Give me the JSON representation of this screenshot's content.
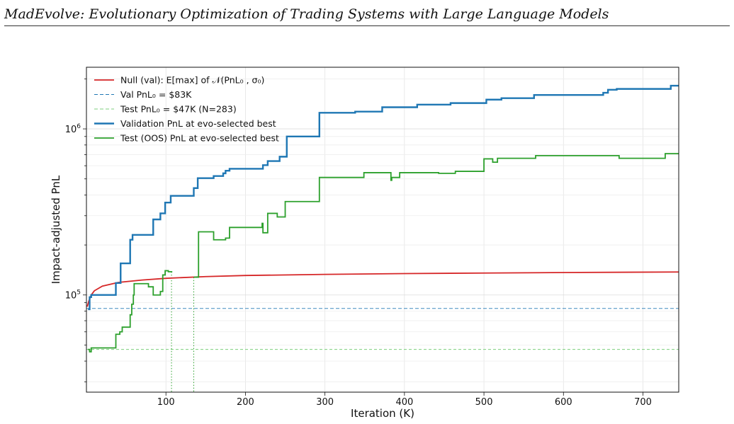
{
  "page_header": "MadEvolve: Evolutionary Optimization of Trading Systems with Large Language Models",
  "chart_data": {
    "type": "line",
    "xlabel": "Iteration (K)",
    "ylabel": "Impact-adjusted PnL",
    "xlim": [
      0,
      745
    ],
    "ylim": [
      26000,
      2350000
    ],
    "yscale": "log",
    "xticks": [
      100,
      200,
      300,
      400,
      500,
      600,
      700
    ],
    "yticks": [
      {
        "value": 100000,
        "base": "10",
        "exp": "5"
      },
      {
        "value": 1000000,
        "base": "10",
        "exp": "6"
      }
    ],
    "grid": true,
    "legend_position": "top-left",
    "colors": {
      "null": "#d62728",
      "val": "#1f77b4",
      "test": "#2ca02c"
    },
    "legend": [
      {
        "key": "null",
        "label": "Null (val): E[max] of 𝒩(PnL₀ , σ₀)",
        "color": "#d62728",
        "style": "solid"
      },
      {
        "key": "val_base",
        "label": "Val PnL₀ = $83K",
        "color": "#1f77b4",
        "style": "dashed"
      },
      {
        "key": "test_base",
        "label": "Test PnL₀ = $47K  (N=283)",
        "color": "#2ca02c",
        "style": "dashed"
      },
      {
        "key": "val",
        "label": "Validation PnL at evo-selected best",
        "color": "#1f77b4",
        "style": "solid"
      },
      {
        "key": "test",
        "label": "Test (OOS) PnL at evo-selected best",
        "color": "#2ca02c",
        "style": "solid"
      }
    ],
    "baselines": {
      "val": 83000,
      "test": 47000
    },
    "vlines": [
      {
        "x": 107,
        "y_top": 138000
      },
      {
        "x": 135,
        "y_top": 128000
      }
    ],
    "series": [
      {
        "key": "null",
        "points": [
          [
            1,
            85000
          ],
          [
            3,
            92000
          ],
          [
            6,
            100000
          ],
          [
            10,
            106000
          ],
          [
            20,
            113000
          ],
          [
            40,
            119000
          ],
          [
            70,
            123000
          ],
          [
            100,
            126000
          ],
          [
            150,
            129000
          ],
          [
            200,
            131000
          ],
          [
            300,
            133000
          ],
          [
            400,
            134500
          ],
          [
            500,
            135500
          ],
          [
            600,
            136500
          ],
          [
            745,
            137500
          ]
        ]
      },
      {
        "key": "val",
        "points": [
          [
            2,
            82000
          ],
          [
            4,
            82000
          ],
          [
            4,
            97000
          ],
          [
            6,
            97000
          ],
          [
            6,
            100000
          ],
          [
            37,
            100000
          ],
          [
            37,
            118000
          ],
          [
            43,
            118000
          ],
          [
            43,
            155000
          ],
          [
            55,
            155000
          ],
          [
            55,
            215000
          ],
          [
            58,
            215000
          ],
          [
            58,
            230000
          ],
          [
            84,
            230000
          ],
          [
            84,
            285000
          ],
          [
            93,
            285000
          ],
          [
            93,
            310000
          ],
          [
            99,
            310000
          ],
          [
            99,
            360000
          ],
          [
            106,
            360000
          ],
          [
            106,
            395000
          ],
          [
            135,
            395000
          ],
          [
            135,
            440000
          ],
          [
            140,
            440000
          ],
          [
            140,
            505000
          ],
          [
            160,
            505000
          ],
          [
            160,
            520000
          ],
          [
            172,
            520000
          ],
          [
            172,
            540000
          ],
          [
            175,
            540000
          ],
          [
            175,
            560000
          ],
          [
            180,
            560000
          ],
          [
            180,
            575000
          ],
          [
            222,
            575000
          ],
          [
            222,
            605000
          ],
          [
            228,
            605000
          ],
          [
            228,
            640000
          ],
          [
            243,
            640000
          ],
          [
            243,
            680000
          ],
          [
            252,
            680000
          ],
          [
            252,
            900000
          ],
          [
            293,
            900000
          ],
          [
            293,
            1250000
          ],
          [
            338,
            1250000
          ],
          [
            338,
            1270000
          ],
          [
            372,
            1270000
          ],
          [
            372,
            1350000
          ],
          [
            416,
            1350000
          ],
          [
            416,
            1400000
          ],
          [
            458,
            1400000
          ],
          [
            458,
            1430000
          ],
          [
            503,
            1430000
          ],
          [
            503,
            1500000
          ],
          [
            522,
            1500000
          ],
          [
            522,
            1530000
          ],
          [
            563,
            1530000
          ],
          [
            563,
            1600000
          ],
          [
            650,
            1600000
          ],
          [
            650,
            1650000
          ],
          [
            656,
            1650000
          ],
          [
            656,
            1720000
          ],
          [
            667,
            1720000
          ],
          [
            667,
            1740000
          ],
          [
            735,
            1740000
          ],
          [
            735,
            1820000
          ],
          [
            745,
            1820000
          ]
        ]
      },
      {
        "key": "test_a",
        "points": [
          [
            2,
            47000
          ],
          [
            4,
            47000
          ],
          [
            4,
            45500
          ],
          [
            6,
            45500
          ],
          [
            6,
            48000
          ],
          [
            37,
            48000
          ],
          [
            37,
            58000
          ],
          [
            42,
            58000
          ],
          [
            42,
            60000
          ],
          [
            45,
            60000
          ],
          [
            45,
            64000
          ],
          [
            55,
            64000
          ],
          [
            55,
            76000
          ],
          [
            57,
            76000
          ],
          [
            57,
            88000
          ],
          [
            59,
            88000
          ],
          [
            59,
            100000
          ],
          [
            60,
            100000
          ],
          [
            60,
            117000
          ],
          [
            78,
            117000
          ],
          [
            78,
            112000
          ],
          [
            84,
            112000
          ],
          [
            84,
            100000
          ],
          [
            93,
            100000
          ],
          [
            93,
            105000
          ],
          [
            96,
            105000
          ],
          [
            96,
            132000
          ],
          [
            99,
            132000
          ],
          [
            99,
            140000
          ],
          [
            103,
            140000
          ],
          [
            103,
            138000
          ],
          [
            108,
            138000
          ]
        ]
      },
      {
        "key": "test_b",
        "points": [
          [
            135,
            128000
          ],
          [
            141,
            128000
          ],
          [
            141,
            240000
          ],
          [
            160,
            240000
          ],
          [
            160,
            215000
          ],
          [
            175,
            215000
          ],
          [
            175,
            220000
          ],
          [
            180,
            220000
          ],
          [
            180,
            255000
          ],
          [
            221,
            255000
          ],
          [
            221,
            270000
          ],
          [
            222,
            270000
          ],
          [
            222,
            237000
          ],
          [
            228,
            237000
          ],
          [
            228,
            310000
          ],
          [
            240,
            310000
          ],
          [
            240,
            295000
          ],
          [
            250,
            295000
          ],
          [
            250,
            365000
          ],
          [
            293,
            365000
          ],
          [
            293,
            510000
          ],
          [
            349,
            510000
          ],
          [
            349,
            545000
          ],
          [
            383,
            545000
          ],
          [
            383,
            490000
          ],
          [
            384,
            490000
          ],
          [
            384,
            510000
          ],
          [
            394,
            510000
          ],
          [
            394,
            545000
          ],
          [
            443,
            545000
          ],
          [
            443,
            540000
          ],
          [
            464,
            540000
          ],
          [
            464,
            555000
          ],
          [
            500,
            555000
          ],
          [
            500,
            660000
          ],
          [
            511,
            660000
          ],
          [
            511,
            630000
          ],
          [
            517,
            630000
          ],
          [
            517,
            665000
          ],
          [
            565,
            665000
          ],
          [
            565,
            690000
          ],
          [
            670,
            690000
          ],
          [
            670,
            665000
          ],
          [
            728,
            665000
          ],
          [
            728,
            710000
          ],
          [
            745,
            710000
          ]
        ]
      }
    ]
  }
}
